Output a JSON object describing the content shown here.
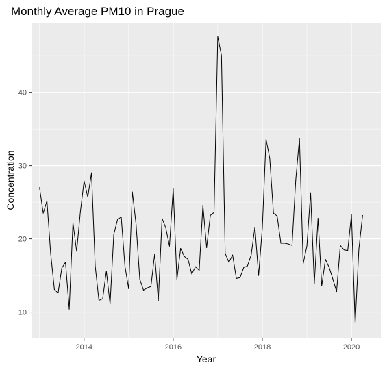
{
  "chart_data": {
    "type": "line",
    "title": "Monthly Average PM10 in Prague",
    "xlabel": "Year",
    "ylabel": "Concentration",
    "xlim": [
      2012.82,
      2020.66
    ],
    "ylim": [
      6.5,
      49.5
    ],
    "x_ticks": [
      2014,
      2016,
      2018,
      2020
    ],
    "y_ticks": [
      10,
      20,
      30,
      40
    ],
    "grid": true,
    "background": "#ebebeb",
    "grid_color": "#ffffff",
    "line_color": "#000000",
    "series": [
      {
        "x_start": 2013.0,
        "x_step_months": 1,
        "values": [
          27.0,
          23.5,
          25.2,
          18.0,
          13.1,
          12.6,
          16.0,
          16.8,
          10.4,
          22.2,
          18.3,
          23.7,
          27.9,
          25.7,
          29.0,
          16.3,
          11.6,
          11.8,
          15.6,
          11.1,
          20.6,
          22.6,
          23.0,
          16.3,
          13.2,
          26.4,
          22.0,
          14.5,
          13.0,
          13.3,
          13.5,
          17.9,
          11.6,
          22.8,
          21.5,
          19.0,
          26.9,
          14.4,
          18.7,
          17.6,
          17.2,
          15.2,
          16.2,
          15.7,
          24.6,
          18.8,
          23.2,
          23.6,
          47.6,
          45.0,
          18.0,
          16.8,
          17.8,
          14.6,
          14.7,
          16.1,
          16.3,
          17.8,
          21.6,
          15.0,
          21.5,
          33.6,
          31.0,
          23.5,
          23.1,
          19.4,
          19.4,
          19.3,
          19.1,
          28.0,
          33.7,
          16.6,
          19.0,
          26.3,
          13.9,
          22.8,
          13.6,
          17.2,
          16.1,
          14.5,
          12.8,
          19.1,
          18.5,
          18.4,
          23.3,
          8.4,
          18.6,
          23.2
        ]
      }
    ]
  }
}
